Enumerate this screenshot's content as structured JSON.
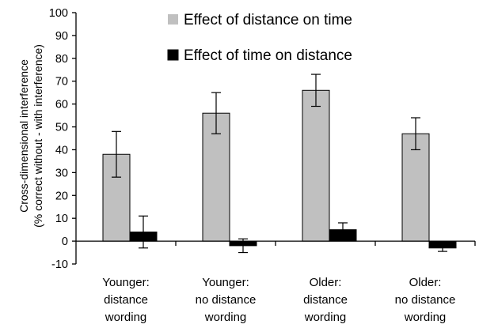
{
  "chart_data": {
    "type": "bar",
    "title": "",
    "xlabel": "",
    "ylabel": [
      "Cross-dimensional interference",
      "(% correct without - with interference)"
    ],
    "ylim": [
      -10,
      100
    ],
    "yticks": [
      -10,
      0,
      10,
      20,
      30,
      40,
      50,
      60,
      70,
      80,
      90,
      100
    ],
    "grid": false,
    "legend_position": "top-right",
    "categories": [
      [
        "Younger:",
        "distance",
        "wording"
      ],
      [
        "Younger:",
        "no distance",
        "wording"
      ],
      [
        "Older:",
        "distance",
        "wording"
      ],
      [
        "Older:",
        "no distance",
        "wording"
      ]
    ],
    "series": [
      {
        "name": "Effect of distance on time",
        "color": "#c0c0c0",
        "values": [
          38,
          56,
          66,
          47
        ],
        "errors": [
          10,
          9,
          7,
          7
        ]
      },
      {
        "name": "Effect of time on distance",
        "color": "#000000",
        "values": [
          4,
          -2,
          5,
          -3
        ],
        "errors": [
          7,
          3,
          3,
          1.5
        ]
      }
    ]
  }
}
